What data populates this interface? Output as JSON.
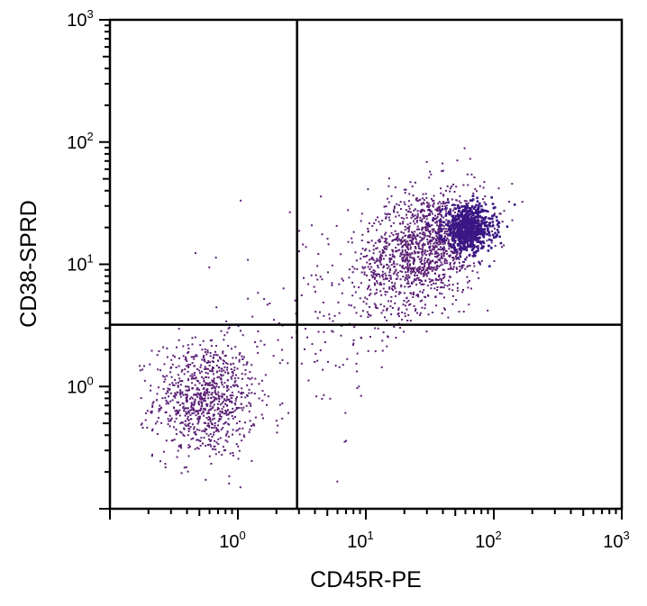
{
  "chart_data": {
    "type": "scatter",
    "xlabel": "CD45R-PE",
    "ylabel": "CD38-SPRD",
    "xscale": "log",
    "yscale": "log",
    "xlim": [
      0.1,
      1000
    ],
    "ylim": [
      0.1,
      1000
    ],
    "grid": false,
    "point_color": "#5a1f74",
    "dense_color": "#3a1684",
    "quadrant_lines": {
      "x": 2.9,
      "y": 3.2
    },
    "x_tick_labels": [
      {
        "value": 1,
        "base": "10",
        "exp": "0"
      },
      {
        "value": 10,
        "base": "10",
        "exp": "1"
      },
      {
        "value": 100,
        "base": "10",
        "exp": "2"
      },
      {
        "value": 1000,
        "base": "10",
        "exp": "3"
      }
    ],
    "y_tick_labels": [
      {
        "value": 1,
        "base": "10",
        "exp": "0"
      },
      {
        "value": 10,
        "base": "10",
        "exp": "1"
      },
      {
        "value": 100,
        "base": "10",
        "exp": "2"
      },
      {
        "value": 1000,
        "base": "10",
        "exp": "3"
      }
    ],
    "populations": [
      {
        "name_hint": "lower-left cluster",
        "center": [
          0.55,
          0.8
        ],
        "spread_log10": [
          0.2,
          0.24
        ],
        "count": 900
      },
      {
        "name_hint": "upper-right diffuse",
        "center": [
          28,
          14
        ],
        "spread_log10": [
          0.24,
          0.24
        ],
        "count": 1400
      },
      {
        "name_hint": "upper-right core",
        "center": [
          62,
          20
        ],
        "spread_log10": [
          0.1,
          0.09
        ],
        "count": 700
      },
      {
        "name_hint": "sparse middle",
        "center": [
          5,
          4
        ],
        "spread_log10": [
          0.35,
          0.4
        ],
        "count": 160
      }
    ]
  }
}
